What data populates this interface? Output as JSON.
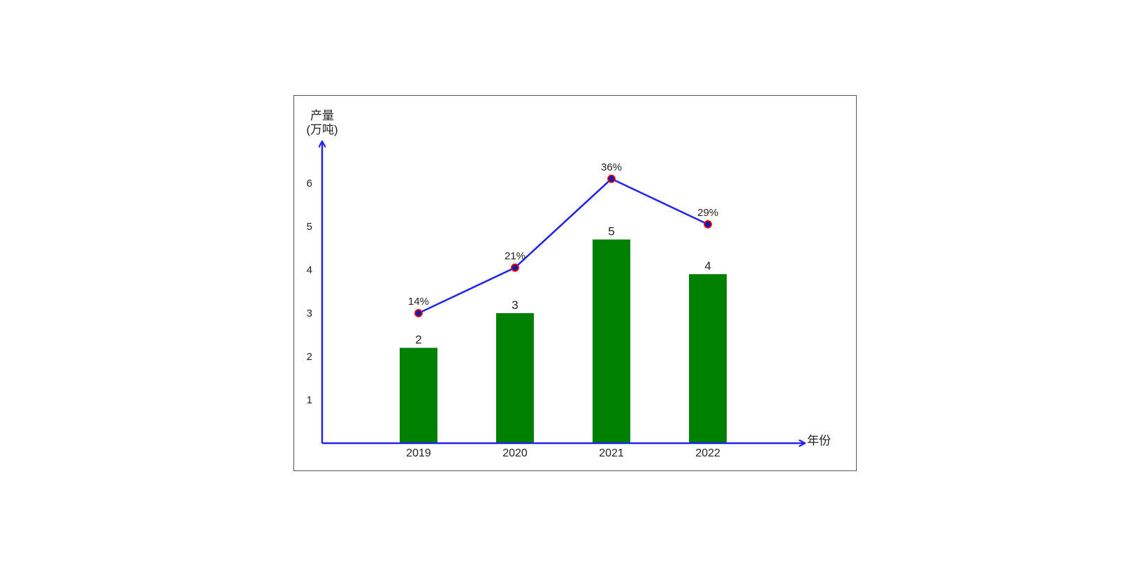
{
  "chart_data": {
    "type": "bar",
    "categories": [
      "2019",
      "2020",
      "2021",
      "2022"
    ],
    "xlabel": "年份",
    "ylabel_line1": "产量",
    "ylabel_line2": "(万吨)",
    "yticks": [
      1,
      2,
      3,
      4,
      5,
      6
    ],
    "ylim": [
      0,
      7
    ],
    "series": [
      {
        "type": "bar",
        "values": [
          2.2,
          3.0,
          4.7,
          3.9
        ],
        "value_labels": [
          "2",
          "3",
          "5",
          "4"
        ],
        "color": "#008000"
      },
      {
        "type": "line",
        "values": [
          3.0,
          4.05,
          6.1,
          5.05
        ],
        "value_labels": [
          "14%",
          "21%",
          "36%",
          "29%"
        ],
        "color": "#2222ee",
        "marker_fill": "#1a1aaa",
        "marker_edge": "#ee0000"
      }
    ],
    "axis_color": "#2222ee",
    "grid": false,
    "legend": "none"
  }
}
